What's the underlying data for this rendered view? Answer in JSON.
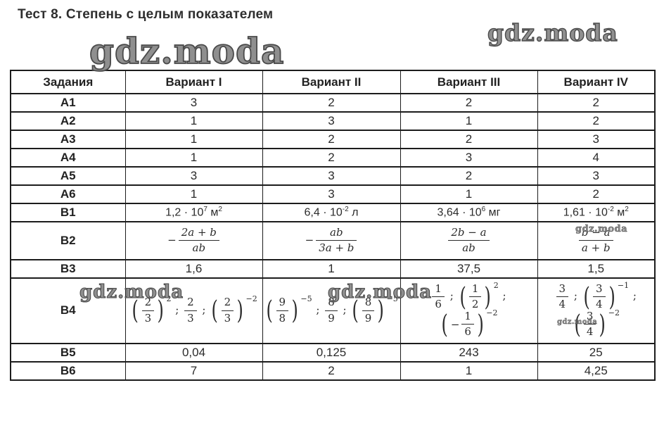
{
  "page": {
    "title": "Тест 8. Степень с целым показателем",
    "watermark_text": "gdz.moda"
  },
  "table": {
    "headers": [
      "Задания",
      "Вариант I",
      "Вариант II",
      "Вариант III",
      "Вариант IV"
    ],
    "rows": [
      {
        "label": "А1",
        "cells": [
          "3",
          "2",
          "2",
          "2"
        ]
      },
      {
        "label": "А2",
        "cells": [
          "1",
          "3",
          "1",
          "2"
        ]
      },
      {
        "label": "А3",
        "cells": [
          "1",
          "2",
          "2",
          "3"
        ]
      },
      {
        "label": "А4",
        "cells": [
          "1",
          "2",
          "3",
          "4"
        ]
      },
      {
        "label": "А5",
        "cells": [
          "3",
          "3",
          "2",
          "3"
        ]
      },
      {
        "label": "А6",
        "cells": [
          "1",
          "3",
          "1",
          "2"
        ]
      },
      {
        "label": "В1",
        "cells": [
          {
            "font": "sans",
            "rich": [
              {
                "t": "1,2 · 10"
              },
              {
                "sup": "7"
              },
              {
                "t": " м"
              },
              {
                "sup": "2"
              }
            ]
          },
          {
            "font": "sans",
            "rich": [
              {
                "t": "6,4 · 10"
              },
              {
                "sup": "-2"
              },
              {
                "t": " л"
              }
            ]
          },
          {
            "font": "sans",
            "rich": [
              {
                "t": "3,64 · 10"
              },
              {
                "sup": "6"
              },
              {
                "t": " мг"
              }
            ]
          },
          {
            "font": "sans",
            "rich": [
              {
                "t": "1,61 · 10"
              },
              {
                "sup": "-2"
              },
              {
                "t": " м"
              },
              {
                "sup": "2"
              }
            ]
          }
        ]
      },
      {
        "label": "В2",
        "tall": true,
        "cells": [
          {
            "font": "math",
            "rich": [
              {
                "t": "−"
              },
              {
                "frac": {
                  "n": "2a + b",
                  "d": "ab",
                  "it": true
                }
              }
            ]
          },
          {
            "font": "math",
            "rich": [
              {
                "t": "−"
              },
              {
                "frac": {
                  "n": "ab",
                  "d": "3a + b",
                  "it": true
                }
              }
            ]
          },
          {
            "font": "math",
            "rich": [
              {
                "frac": {
                  "n": "2b − a",
                  "d": "ab",
                  "it": true
                }
              }
            ]
          },
          {
            "font": "math",
            "rich": [
              {
                "frac": {
                  "n": "b − a",
                  "d": "a + b",
                  "it": true
                }
              }
            ]
          }
        ]
      },
      {
        "label": "В3",
        "cells": [
          "1,6",
          "1",
          "37,5",
          "1,5"
        ]
      },
      {
        "label": "В4",
        "tall": true,
        "cells": [
          {
            "font": "math",
            "rich": [
              {
                "pfrac": {
                  "n": "2",
                  "d": "3",
                  "exp": "2"
                }
              },
              {
                "t": " ; "
              },
              {
                "frac": {
                  "n": "2",
                  "d": "3"
                }
              },
              {
                "t": " ; "
              },
              {
                "pfrac": {
                  "n": "2",
                  "d": "3",
                  "exp": "−2"
                }
              }
            ]
          },
          {
            "font": "math",
            "rich": [
              {
                "pfrac": {
                  "n": "9",
                  "d": "8",
                  "exp": "−5"
                }
              },
              {
                "t": " ; "
              },
              {
                "frac": {
                  "n": "8",
                  "d": "9"
                }
              },
              {
                "t": " ; "
              },
              {
                "pfrac": {
                  "n": "8",
                  "d": "9",
                  "exp": "−5"
                }
              }
            ]
          },
          {
            "font": "math",
            "rich": [
              {
                "frac": {
                  "n": "1",
                  "d": "6"
                }
              },
              {
                "t": " ; "
              },
              {
                "pfrac": {
                  "n": "1",
                  "d": "2",
                  "exp": "2"
                }
              },
              {
                "t": " ; "
              },
              {
                "pfrac": {
                  "n": "1",
                  "d": "6",
                  "exp": "−2",
                  "minus": true
                }
              }
            ]
          },
          {
            "font": "math",
            "rich": [
              {
                "frac": {
                  "n": "3",
                  "d": "4"
                }
              },
              {
                "t": " ; "
              },
              {
                "pfrac": {
                  "n": "3",
                  "d": "4",
                  "exp": "−1"
                }
              },
              {
                "t": " ; "
              },
              {
                "pfrac": {
                  "n": "3",
                  "d": "4",
                  "exp": "−2"
                }
              }
            ]
          }
        ]
      },
      {
        "label": "В5",
        "cells": [
          "0,04",
          "0,125",
          "243",
          "25"
        ]
      },
      {
        "label": "В6",
        "cells": [
          "7",
          "2",
          "1",
          "4,25"
        ]
      }
    ]
  }
}
